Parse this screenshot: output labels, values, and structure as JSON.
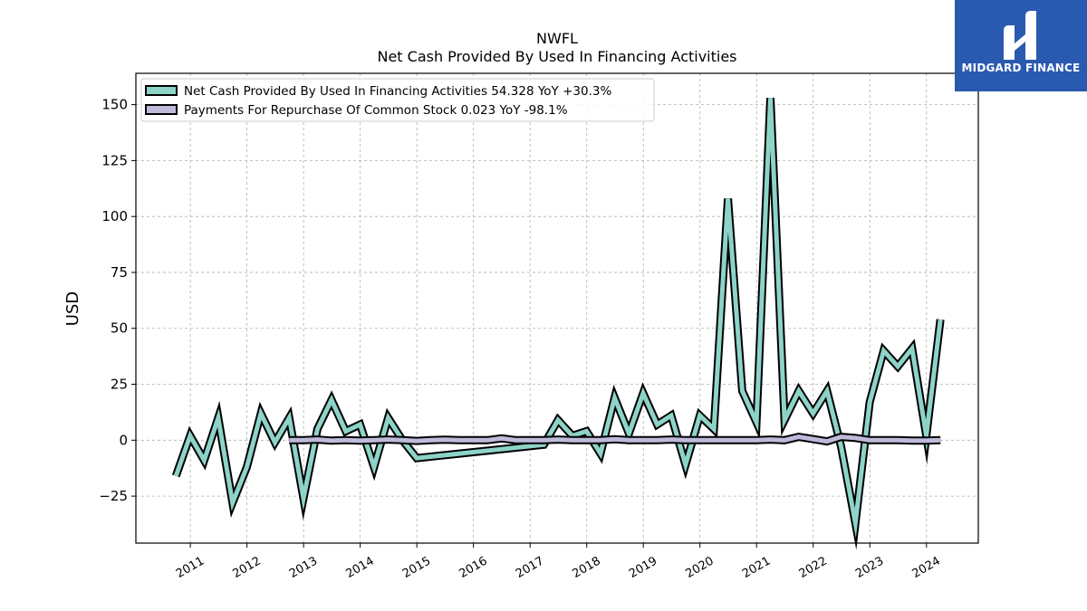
{
  "branding": {
    "logo_text": "MIDGARD FINANCE",
    "logo_color": "#2a5ab0"
  },
  "chart_data": {
    "type": "line",
    "title": "NWFL",
    "subtitle": "Net Cash Provided By Used In Financing Activities",
    "ylabel": "USD",
    "xlabel": "",
    "ylim": [
      -46,
      164
    ],
    "xlim": [
      "2010-01-15",
      "2024-12-01"
    ],
    "yticks": [
      -25,
      0,
      25,
      50,
      75,
      100,
      125,
      150
    ],
    "ytick_labels": [
      "−25",
      "0",
      "25",
      "50",
      "75",
      "100",
      "125",
      "150"
    ],
    "xticks": [
      "2011",
      "2012",
      "2013",
      "2014",
      "2015",
      "2016",
      "2017",
      "2018",
      "2019",
      "2020",
      "2021",
      "2022",
      "2023",
      "2024"
    ],
    "grid": true,
    "legend_position": "top-left",
    "legend": [
      "Net Cash Provided By Used In Financing Activities  54.328 YoY +30.3%",
      "Payments For Repurchase Of Common Stock  0.023 YoY -98.1%"
    ],
    "series": [
      {
        "name": "Net Cash Provided By Used In Financing Activities",
        "color": "#8dd3c7",
        "x": [
          "2010-09-30",
          "2010-12-31",
          "2011-03-31",
          "2011-06-30",
          "2011-09-30",
          "2011-12-31",
          "2012-03-31",
          "2012-06-30",
          "2012-09-30",
          "2012-12-31",
          "2013-03-31",
          "2013-06-30",
          "2013-09-30",
          "2013-12-31",
          "2014-03-31",
          "2014-06-30",
          "2014-09-30",
          "2014-12-31",
          "2017-03-31",
          "2017-06-30",
          "2017-09-30",
          "2017-12-31",
          "2018-03-31",
          "2018-06-30",
          "2018-09-30",
          "2018-12-31",
          "2019-03-31",
          "2019-06-30",
          "2019-09-30",
          "2019-12-31",
          "2020-03-31",
          "2020-06-30",
          "2020-09-30",
          "2020-12-31",
          "2021-03-31",
          "2021-06-30",
          "2021-09-30",
          "2021-12-31",
          "2022-03-31",
          "2022-06-30",
          "2022-09-30",
          "2022-12-31",
          "2023-03-31",
          "2023-06-30",
          "2023-09-30",
          "2023-12-31",
          "2024-03-31"
        ],
        "y": [
          -16,
          2,
          -9,
          10,
          -28,
          -12,
          12,
          -1,
          10,
          -26,
          5,
          18,
          4,
          7,
          -12,
          10,
          0,
          -8,
          -2,
          9,
          2,
          4,
          -6,
          19,
          3,
          21,
          7,
          11,
          -11,
          11,
          5,
          108,
          22,
          8,
          153,
          9,
          22,
          12,
          22,
          -3,
          -37,
          17,
          40,
          33,
          41,
          2,
          54
        ]
      },
      {
        "name": "Payments For Repurchase Of Common Stock",
        "color": "#bebada",
        "x": [
          "2012-09-30",
          "2012-12-31",
          "2013-03-31",
          "2013-06-30",
          "2013-09-30",
          "2013-12-31",
          "2014-03-31",
          "2014-06-30",
          "2014-09-30",
          "2014-12-31",
          "2015-03-31",
          "2015-06-30",
          "2015-09-30",
          "2015-12-31",
          "2016-03-31",
          "2016-06-30",
          "2016-09-30",
          "2016-12-31",
          "2017-03-31",
          "2017-06-30",
          "2017-09-30",
          "2017-12-31",
          "2018-03-31",
          "2018-06-30",
          "2018-09-30",
          "2018-12-31",
          "2019-03-31",
          "2019-06-30",
          "2019-09-30",
          "2019-12-31",
          "2020-03-31",
          "2020-06-30",
          "2020-09-30",
          "2020-12-31",
          "2021-03-31",
          "2021-06-30",
          "2021-09-30",
          "2021-12-31",
          "2022-03-31",
          "2022-06-30",
          "2022-09-30",
          "2022-12-31",
          "2023-03-31",
          "2023-06-30",
          "2023-09-30",
          "2023-12-31",
          "2024-03-31"
        ],
        "y": [
          0,
          0,
          0.3,
          -0.2,
          0,
          -0.2,
          0,
          0.3,
          0,
          -0.3,
          0,
          0.2,
          0,
          0,
          0,
          0.8,
          0,
          0,
          0,
          0.3,
          0,
          0,
          0,
          0.4,
          0,
          0,
          0,
          0.3,
          0,
          0,
          0,
          0,
          0,
          0,
          0.3,
          0,
          1.5,
          0.5,
          -0.5,
          1.5,
          1,
          0,
          0,
          0,
          -0.2,
          -0.2,
          0.02
        ]
      }
    ]
  }
}
